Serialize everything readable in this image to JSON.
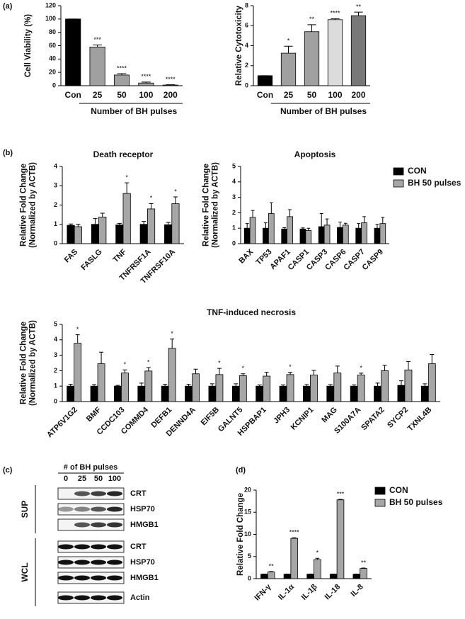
{
  "panel_labels": [
    "(a)",
    "(b)",
    "(c)",
    "(d)"
  ],
  "chart_data": [
    {
      "type": "bar",
      "ylabel": [
        "Cell Viability (%)"
      ],
      "xlabel": "Number of BH pulses",
      "categories": [
        "Con",
        "25",
        "50",
        "100",
        "200"
      ],
      "series": [
        {
          "colors": [
            "#000000",
            "#a0a0a0",
            "#a0a0a0",
            "#a0a0a0",
            "#a0a0a0"
          ],
          "values": [
            100,
            58,
            16,
            4,
            1
          ],
          "errors": [
            0,
            3,
            2,
            1.5,
            0.5
          ],
          "significance": [
            null,
            "***",
            "****",
            "****",
            "****"
          ]
        }
      ],
      "ylim": [
        0,
        120
      ],
      "yticks": [
        0,
        20,
        40,
        60,
        80,
        100,
        120
      ]
    },
    {
      "type": "bar",
      "ylabel": [
        "Relative Cytotoxicity"
      ],
      "xlabel": "Number of BH pulses",
      "categories": [
        "Con",
        "25",
        "50",
        "100",
        "200"
      ],
      "series": [
        {
          "colors": [
            "#000000",
            "#a0a0a0",
            "#a0a0a0",
            "#dcdcdc",
            "#787878"
          ],
          "values": [
            1,
            3.25,
            5.4,
            6.6,
            7.0
          ],
          "errors": [
            0,
            0.7,
            0.7,
            0.1,
            0.35
          ],
          "significance": [
            null,
            "*",
            "**",
            "****",
            "**"
          ]
        }
      ],
      "ylim": [
        0,
        8
      ],
      "yticks": [
        0,
        2,
        4,
        6,
        8
      ]
    },
    {
      "type": "bar",
      "title": "Death receptor",
      "ylabel": [
        "Relative Fold Change",
        "(Normalized by ACTB)"
      ],
      "categories": [
        "FAS",
        "FASLG",
        "TNF",
        "TNFRSF1A",
        "TNFRSF10A"
      ],
      "series": [
        {
          "color": "#000000",
          "values": [
            0.95,
            1.0,
            0.97,
            1.0,
            0.98
          ],
          "errors": [
            0.07,
            0.3,
            0.08,
            0.15,
            0.12
          ]
        },
        {
          "color": "#a6a6a6",
          "values": [
            0.88,
            1.38,
            2.6,
            1.8,
            2.07
          ],
          "errors": [
            0.12,
            0.2,
            0.55,
            0.28,
            0.35
          ],
          "significance": [
            null,
            null,
            "*",
            "*",
            "*"
          ]
        }
      ],
      "ylim": [
        0,
        4
      ],
      "yticks": [
        0,
        1,
        2,
        3,
        4
      ]
    },
    {
      "type": "bar",
      "title": "Apoptosis",
      "legend": "right",
      "categories": [
        "BAX",
        "TP53",
        "APAF1",
        "CASP1",
        "CASP3",
        "CASP6",
        "CASP7",
        "CASP9"
      ],
      "ylabel": [
        "Relative Fold Change",
        "(Normalized by ACTB)"
      ],
      "series": [
        {
          "name": "CON",
          "color": "#000000",
          "values": [
            1.0,
            1.0,
            0.95,
            0.95,
            1.1,
            1.05,
            1.0,
            1.0
          ],
          "errors": [
            0.3,
            0.35,
            0.08,
            0.07,
            0.85,
            0.35,
            0.3,
            0.25
          ]
        },
        {
          "name": "BH 50 pulses",
          "color": "#a6a6a6",
          "values": [
            1.7,
            1.95,
            1.75,
            0.85,
            1.2,
            1.2,
            1.35,
            1.3
          ],
          "errors": [
            0.45,
            0.7,
            0.45,
            0.15,
            0.4,
            0.12,
            0.4,
            0.4
          ]
        }
      ],
      "ylim": [
        0,
        5
      ],
      "yticks": [
        0,
        1,
        2,
        3,
        4,
        5
      ]
    },
    {
      "type": "bar",
      "title": "TNF-induced necrosis",
      "ylabel": [
        "Relative Fold Change",
        "(Normalized by ACTB)"
      ],
      "categories": [
        "ATP6V1G2",
        "BMF",
        "CCDC103",
        "COMMD4",
        "DEFB1",
        "DENND4A",
        "EIF5B",
        "GALNT5",
        "HSPBAP1",
        "JPH3",
        "KCNIP1",
        "MAG",
        "S100A7A",
        "SPATA2",
        "SYCP2",
        "TXNL4B"
      ],
      "series": [
        {
          "color": "#000000",
          "values": [
            1,
            1,
            1,
            1,
            1,
            1,
            1,
            1,
            1,
            1,
            1,
            1,
            1,
            1,
            1.05,
            1
          ],
          "errors": [
            0.12,
            0.1,
            0.05,
            0.2,
            0.12,
            0.12,
            0.15,
            0.15,
            0.08,
            0.08,
            0.1,
            0.1,
            0.08,
            0.2,
            0.3,
            0.15
          ]
        },
        {
          "color": "#a6a6a6",
          "values": [
            3.78,
            2.45,
            1.85,
            1.98,
            3.45,
            1.8,
            1.75,
            1.68,
            1.65,
            1.75,
            1.72,
            1.85,
            1.72,
            2.0,
            2.05,
            2.45
          ],
          "errors": [
            0.55,
            0.75,
            0.2,
            0.22,
            0.6,
            0.3,
            0.4,
            0.12,
            0.25,
            0.15,
            0.3,
            0.45,
            0.12,
            0.35,
            0.55,
            0.6
          ],
          "significance": [
            "*",
            null,
            "*",
            "*",
            "*",
            null,
            "*",
            "*",
            null,
            "*",
            null,
            null,
            "*",
            null,
            null,
            null
          ]
        }
      ],
      "ylim": [
        0,
        5
      ],
      "yticks": [
        0,
        1,
        2,
        3,
        4,
        5
      ]
    },
    {
      "type": "bar",
      "legend": "right",
      "ylabel": [
        "Relative Fold Change"
      ],
      "categories": [
        "IFN-γ",
        "IL-1α",
        "IL-1β",
        "IL-18",
        "IL-8"
      ],
      "series": [
        {
          "name": "CON",
          "color": "#000000",
          "values": [
            1,
            1,
            1,
            1,
            1
          ],
          "errors": [
            0.05,
            0.05,
            0.05,
            0.05,
            0.05
          ]
        },
        {
          "name": "BH 50 pulses",
          "color": "#a6a6a6",
          "values": [
            1.5,
            9.1,
            4.3,
            17.8,
            2.3
          ],
          "errors": [
            0.1,
            0.15,
            0.3,
            0.1,
            0.1
          ],
          "significance": [
            "**",
            "****",
            "*",
            "***",
            "**"
          ]
        }
      ],
      "ylim": [
        0,
        20
      ],
      "yticks": [
        0,
        5,
        10,
        15,
        20
      ]
    }
  ],
  "blot": {
    "header": "# of BH pulses",
    "lanes": [
      "0",
      "25",
      "50",
      "100"
    ],
    "groups": [
      {
        "name": "SUP",
        "rows": [
          "CRT",
          "HSP70",
          "HMGB1"
        ]
      },
      {
        "name": "WCL",
        "rows": [
          "CRT",
          "HSP70",
          "HMGB1",
          "Actin"
        ]
      }
    ]
  }
}
